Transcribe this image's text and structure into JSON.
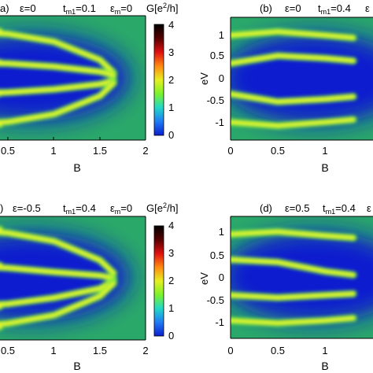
{
  "colorbar": {
    "label_prefix": "G[e",
    "label_sup": "2",
    "label_suffix": "/h]",
    "ticks": [
      "0",
      "1",
      "2",
      "3",
      "4"
    ],
    "colors": [
      "#0a1fcf",
      "#1f7cf5",
      "#22d8c8",
      "#7cf22a",
      "#e6f020",
      "#ff8a10",
      "#e01010",
      "#550000",
      "#000000"
    ]
  },
  "panels": [
    {
      "letter": "a)",
      "params": {
        "eps": "ε=0",
        "tm1_value": "t",
        "tm1_sub": "m1",
        "tm1_val": "=0.1",
        "em": "ε",
        "em_sub": "m",
        "em_val": "=0"
      },
      "x_ticks": [
        "0.5",
        "1",
        "1.5",
        "2"
      ],
      "xlabel": "B",
      "ylabel": "",
      "y_ticks": []
    },
    {
      "letter": "(b)",
      "params": {
        "eps": "ε=0",
        "tm1_value": "t",
        "tm1_sub": "m1",
        "tm1_val": "=0.4",
        "em": "ε",
        "em_sub": "",
        "em_val": ""
      },
      "x_ticks": [
        "0",
        "0.5",
        "1"
      ],
      "xlabel": "B",
      "ylabel": "eV",
      "y_ticks": [
        "1",
        "0.5",
        "0",
        "-0.5",
        "-1"
      ]
    },
    {
      "letter": ")",
      "params": {
        "eps": "ε=-0.5",
        "tm1_value": "t",
        "tm1_sub": "m1",
        "tm1_val": "=0.4",
        "em": "ε",
        "em_sub": "m",
        "em_val": "=0"
      },
      "x_ticks": [
        "0.5",
        "1",
        "1.5",
        "2"
      ],
      "xlabel": "B",
      "ylabel": "",
      "y_ticks": []
    },
    {
      "letter": "(d)",
      "params": {
        "eps": "ε=0.5",
        "tm1_value": "t",
        "tm1_sub": "m1",
        "tm1_val": "=0.4",
        "em": "ε",
        "em_sub": "",
        "em_val": ""
      },
      "x_ticks": [
        "0",
        "0.5",
        "1"
      ],
      "xlabel": "B",
      "ylabel": "eV",
      "y_ticks": [
        "1",
        "0.5",
        "0",
        "-0.5",
        "-1"
      ]
    }
  ],
  "chart_data": [
    {
      "type": "heatmap",
      "panel": "a",
      "xlabel": "B",
      "xlim": [
        0,
        2
      ],
      "ylim": [
        -1.2,
        1.2
      ],
      "colorbar_label": "G[e^2/h]",
      "zlim": [
        0,
        4
      ],
      "ridges": [
        {
          "branch": "outer-upper",
          "B": [
            0,
            0.5,
            1.0,
            1.5,
            1.65
          ],
          "eV": [
            0.9,
            0.85,
            0.7,
            0.35,
            0.1
          ]
        },
        {
          "branch": "inner-upper",
          "B": [
            0,
            0.5,
            1.0,
            1.5,
            1.65
          ],
          "eV": [
            0.3,
            0.28,
            0.22,
            0.12,
            0.05
          ]
        },
        {
          "branch": "inner-lower",
          "B": [
            0,
            0.5,
            1.0,
            1.5,
            1.65
          ],
          "eV": [
            -0.3,
            -0.28,
            -0.22,
            -0.12,
            -0.05
          ]
        },
        {
          "branch": "outer-lower",
          "B": [
            0,
            0.5,
            1.0,
            1.5,
            1.65
          ],
          "eV": [
            -0.9,
            -0.85,
            -0.7,
            -0.35,
            -0.1
          ]
        }
      ]
    },
    {
      "type": "heatmap",
      "panel": "b",
      "xlabel": "B",
      "ylabel": "eV",
      "xlim": [
        0,
        1.3
      ],
      "ylim": [
        -1.2,
        1.2
      ],
      "ridges": [
        {
          "branch": "outer-upper",
          "B": [
            0,
            0.5,
            1.0,
            1.3
          ],
          "eV": [
            0.85,
            0.92,
            0.85,
            0.8
          ]
        },
        {
          "branch": "inner-upper",
          "B": [
            0,
            0.5,
            1.0,
            1.3
          ],
          "eV": [
            0.3,
            0.45,
            0.4,
            0.35
          ]
        },
        {
          "branch": "inner-lower",
          "B": [
            0,
            0.5,
            1.0,
            1.3
          ],
          "eV": [
            -0.3,
            -0.45,
            -0.4,
            -0.35
          ]
        },
        {
          "branch": "outer-lower",
          "B": [
            0,
            0.5,
            1.0,
            1.3
          ],
          "eV": [
            -0.85,
            -0.92,
            -0.85,
            -0.8
          ]
        }
      ]
    },
    {
      "type": "heatmap",
      "panel": "c",
      "xlabel": "B",
      "xlim": [
        0,
        2
      ],
      "ylim": [
        -1.2,
        1.2
      ],
      "colorbar_label": "G[e^2/h]",
      "zlim": [
        0,
        4
      ],
      "ridges": [
        {
          "branch": "outer-upper",
          "B": [
            0,
            0.5,
            1.0,
            1.5,
            1.65
          ],
          "eV": [
            0.95,
            0.88,
            0.72,
            0.35,
            0.1
          ]
        },
        {
          "branch": "inner-upper",
          "B": [
            0,
            0.5,
            1.0,
            1.5,
            1.65
          ],
          "eV": [
            0.25,
            0.2,
            0.12,
            0.05,
            0.0
          ]
        },
        {
          "branch": "inner-lower",
          "B": [
            0,
            0.5,
            1.0,
            1.5,
            1.65
          ],
          "eV": [
            -0.55,
            -0.5,
            -0.38,
            -0.2,
            -0.05
          ]
        },
        {
          "branch": "outer-lower",
          "B": [
            0,
            0.5,
            1.0,
            1.5,
            1.65
          ],
          "eV": [
            -0.95,
            -0.88,
            -0.72,
            -0.35,
            -0.1
          ]
        }
      ]
    },
    {
      "type": "heatmap",
      "panel": "d",
      "xlabel": "B",
      "ylabel": "eV",
      "xlim": [
        0,
        1.3
      ],
      "ylim": [
        -1.2,
        1.2
      ],
      "ridges": [
        {
          "branch": "outer-upper",
          "B": [
            0,
            0.5,
            1.0,
            1.3
          ],
          "eV": [
            0.85,
            0.9,
            0.82,
            0.78
          ]
        },
        {
          "branch": "inner-upper",
          "B": [
            0,
            0.5,
            1.0,
            1.3
          ],
          "eV": [
            0.35,
            0.3,
            0.12,
            0.05
          ]
        },
        {
          "branch": "inner-lower",
          "B": [
            0,
            0.5,
            1.0,
            1.3
          ],
          "eV": [
            -0.35,
            -0.4,
            -0.35,
            -0.32
          ]
        },
        {
          "branch": "outer-lower",
          "B": [
            0,
            0.5,
            1.0,
            1.3
          ],
          "eV": [
            -0.85,
            -0.9,
            -0.85,
            -0.8
          ]
        }
      ]
    }
  ]
}
